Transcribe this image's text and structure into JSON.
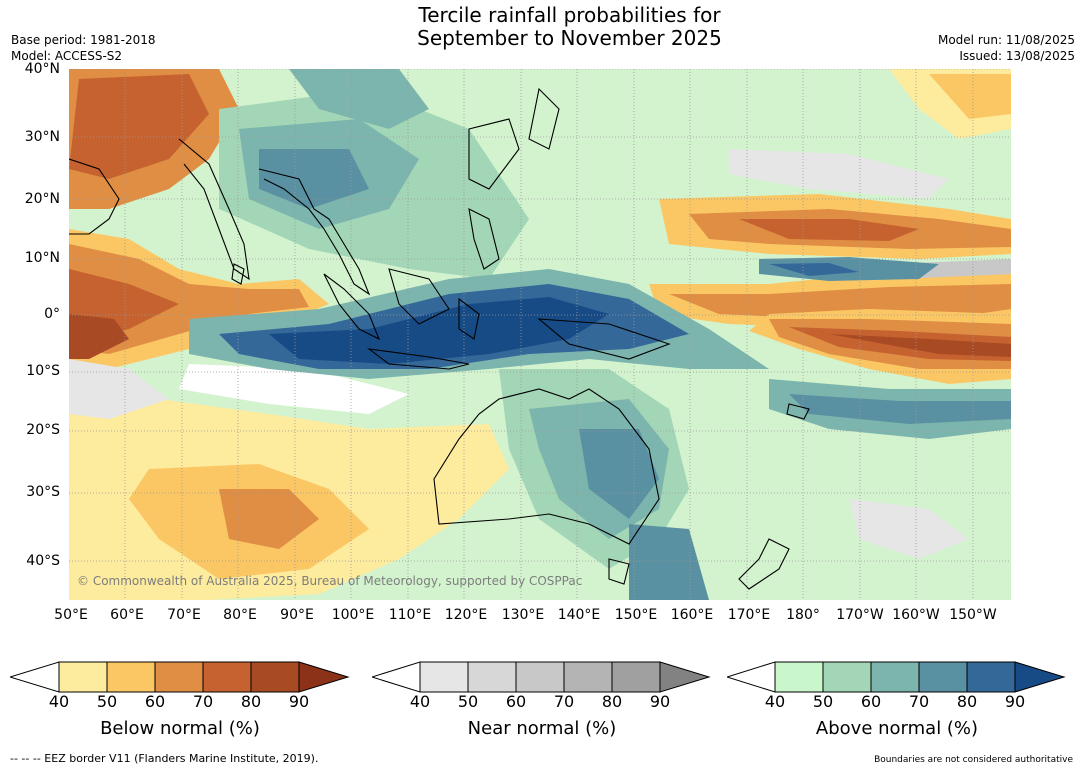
{
  "title_line1": "Tercile rainfall probabilities for",
  "title_line2": "September to November 2025",
  "meta_left": {
    "base_period": "Base period: 1981-2018",
    "model": "Model: ACCESS-S2"
  },
  "meta_right": {
    "model_run": "Model run: 11/08/2025",
    "issued": "Issued: 13/08/2025"
  },
  "lat_labels": [
    "40°N",
    "30°N",
    "20°N",
    "10°N",
    "0°",
    "10°S",
    "20°S",
    "30°S",
    "40°S"
  ],
  "lon_labels": [
    "50°E",
    "60°E",
    "70°E",
    "80°E",
    "90°E",
    "100°E",
    "110°E",
    "120°E",
    "130°E",
    "140°E",
    "150°E",
    "160°E",
    "170°E",
    "180°",
    "170°W",
    "160°W",
    "150°W"
  ],
  "copyright": "© Commonwealth of Australia 2025, Bureau of Meteorology, supported by COSPPac",
  "colorbars": [
    {
      "label": "Below normal (%)",
      "ticks": [
        "40",
        "50",
        "60",
        "70",
        "80",
        "90"
      ],
      "colors": [
        "#ffffff",
        "#fdeb9e",
        "#fbc764",
        "#df8e43",
        "#c6622f",
        "#a84a23",
        "#8b3219"
      ]
    },
    {
      "label": "Near normal (%)",
      "ticks": [
        "40",
        "50",
        "60",
        "70",
        "80",
        "90"
      ],
      "colors": [
        "#ffffff",
        "#e6e6e6",
        "#d7d7d7",
        "#c8c8c8",
        "#b4b4b4",
        "#a0a0a0",
        "#828282"
      ]
    },
    {
      "label": "Above normal (%)",
      "ticks": [
        "40",
        "50",
        "60",
        "70",
        "80",
        "90"
      ],
      "colors": [
        "#ffffff",
        "#c9f7cb",
        "#a3d6b6",
        "#7cb5ad",
        "#5a91a2",
        "#336899",
        "#174b86"
      ]
    }
  ],
  "footnote_left": "--  --  -- EEZ border V11 (Flanders Marine Institute, 2019).",
  "footnote_right": "Boundaries are not considered authoritative"
}
